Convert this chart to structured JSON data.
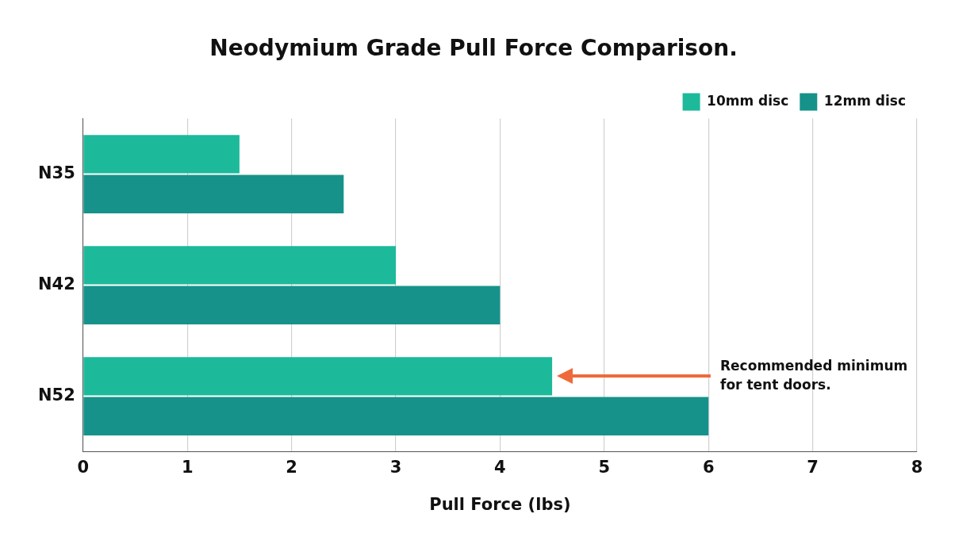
{
  "chart_data": {
    "type": "bar",
    "orientation": "horizontal",
    "title": "Neodymium Grade Pull Force Comparison.",
    "xlabel": "Pull Force (lbs)",
    "categories": [
      "N35",
      "N42",
      "N52"
    ],
    "series": [
      {
        "name": "10mm disc",
        "color": "#1db99b",
        "values": [
          1.5,
          3,
          4.5
        ]
      },
      {
        "name": "12mm disc",
        "color": "#16928a",
        "values": [
          2.5,
          4,
          6
        ]
      }
    ],
    "xlim": [
      0,
      8
    ],
    "xticks": [
      0,
      1,
      2,
      3,
      4,
      5,
      6,
      7,
      8
    ],
    "grid": "x",
    "legend": "top right",
    "annotations": [
      "Recommended minimum for tent doors."
    ]
  }
}
